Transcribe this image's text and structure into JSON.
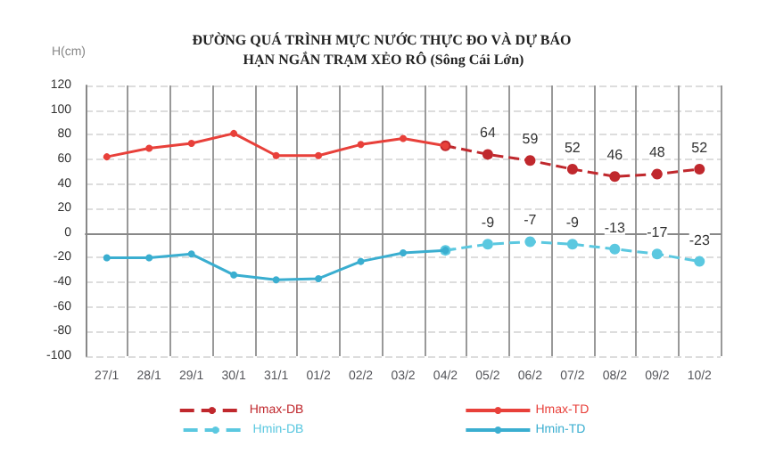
{
  "chart_data": {
    "type": "line",
    "title": "ĐƯỜNG QUÁ TRÌNH MỰC NƯỚC THỰC ĐO VÀ DỰ BÁO HẠN NGẮN TRẠM XẺO RÔ (Sông Cái Lớn)",
    "ylabel": "H(cm)",
    "categories": [
      "27/1",
      "28/1",
      "29/1",
      "30/1",
      "31/1",
      "01/2",
      "02/2",
      "03/2",
      "04/2",
      "05/2",
      "06/2",
      "07/2",
      "08/2",
      "09/2",
      "10/2"
    ],
    "ylim": [
      -100,
      120
    ],
    "yticks": [
      -100,
      -80,
      -60,
      -40,
      -20,
      0,
      20,
      40,
      60,
      80,
      100,
      120
    ],
    "grid": true,
    "legend": "bottom",
    "marker": "circle",
    "series": [
      {
        "name": "Hmax-DB",
        "color": "#c0282d",
        "line_style": "dashed",
        "values": [
          null,
          null,
          null,
          null,
          null,
          null,
          null,
          null,
          71,
          64,
          59,
          52,
          46,
          48,
          52
        ],
        "value_labels": [
          null,
          null,
          null,
          null,
          null,
          null,
          null,
          null,
          null,
          "64",
          "59",
          "52",
          "46",
          "48",
          "52"
        ]
      },
      {
        "name": "Hmax-TD",
        "color": "#e8403a",
        "line_style": "solid",
        "values": [
          62,
          69,
          73,
          81,
          63,
          63,
          72,
          77,
          71,
          null,
          null,
          null,
          null,
          null,
          null
        ]
      },
      {
        "name": "Hmin-DB",
        "color": "#5bc8e0",
        "line_style": "dashed",
        "values": [
          null,
          null,
          null,
          null,
          null,
          null,
          null,
          null,
          -14,
          -9,
          -7,
          -9,
          -13,
          -17,
          -23
        ],
        "value_labels": [
          null,
          null,
          null,
          null,
          null,
          null,
          null,
          null,
          null,
          "-9",
          "-7",
          "-9",
          "-13",
          "-17",
          "-23"
        ]
      },
      {
        "name": "Hmin-TD",
        "color": "#3aaed0",
        "line_style": "solid",
        "values": [
          -20,
          -20,
          -17,
          -34,
          -38,
          -37,
          -23,
          -16,
          -14,
          null,
          null,
          null,
          null,
          null,
          null
        ]
      }
    ]
  }
}
